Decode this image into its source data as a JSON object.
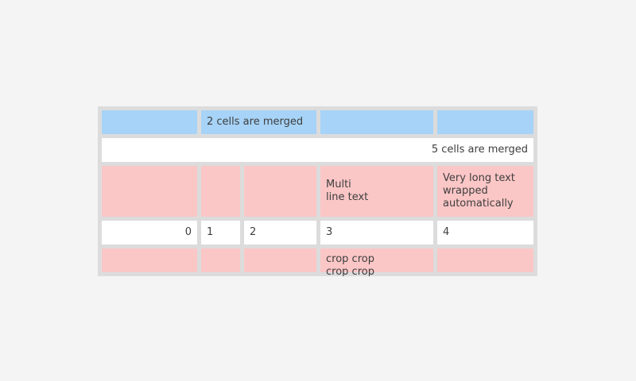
{
  "colors": {
    "page_bg": "#f4f4f4",
    "frame": "#dcdcdc",
    "blue": "#a6d3f7",
    "pink": "#fbc6c6",
    "white": "#ffffff",
    "text": "#3e3e3e"
  },
  "table": {
    "rows": [
      {
        "cells": [
          {
            "text": "",
            "color": "blue"
          },
          {
            "text": "2 cells are merged",
            "color": "blue",
            "span": 2
          },
          {
            "text": "",
            "color": "blue"
          },
          {
            "text": "",
            "color": "blue"
          }
        ]
      },
      {
        "cells": [
          {
            "text": "5 cells are merged",
            "color": "white",
            "span": 5,
            "align": "right"
          }
        ]
      },
      {
        "cells": [
          {
            "text": "",
            "color": "pink"
          },
          {
            "text": "",
            "color": "pink"
          },
          {
            "text": "",
            "color": "pink"
          },
          {
            "text": "Multi\nline text",
            "color": "pink"
          },
          {
            "text": "Very long text wrapped automatically",
            "color": "pink"
          }
        ]
      },
      {
        "cells": [
          {
            "text": "0",
            "color": "white",
            "align": "right"
          },
          {
            "text": "1",
            "color": "white"
          },
          {
            "text": "2",
            "color": "white"
          },
          {
            "text": "3",
            "color": "white"
          },
          {
            "text": "4",
            "color": "white"
          }
        ]
      },
      {
        "cells": [
          {
            "text": "",
            "color": "pink"
          },
          {
            "text": "",
            "color": "pink"
          },
          {
            "text": "",
            "color": "pink"
          },
          {
            "text": "crop crop crop crop",
            "color": "pink",
            "clipped": true
          },
          {
            "text": "",
            "color": "pink"
          }
        ]
      }
    ]
  }
}
